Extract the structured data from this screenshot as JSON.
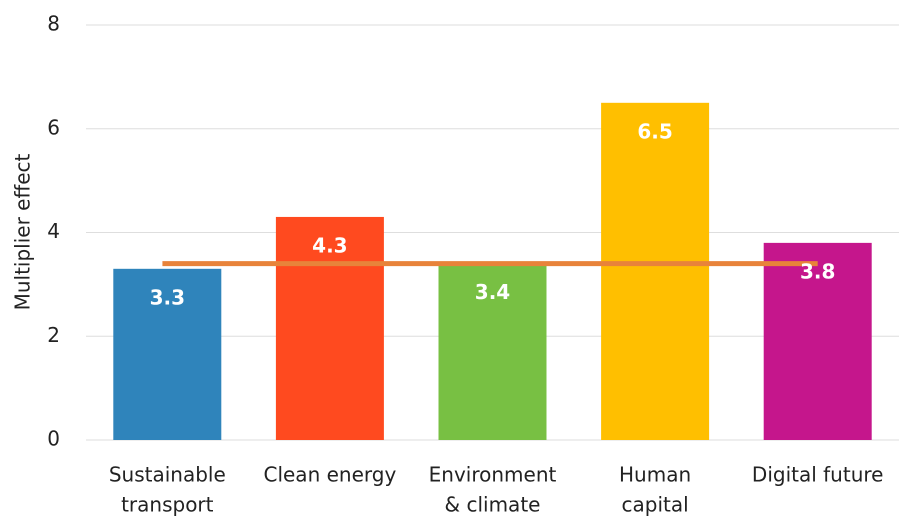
{
  "chart_data": {
    "type": "bar",
    "y_label": "Multiplier effect",
    "categories": [
      [
        "Sustainable",
        "transport"
      ],
      [
        "Clean energy"
      ],
      [
        "Environment",
        "& climate"
      ],
      [
        "Human",
        "capital"
      ],
      [
        "Digital future"
      ]
    ],
    "values": [
      3.3,
      4.3,
      3.4,
      6.5,
      3.8
    ],
    "colors": [
      "#2f84bb",
      "#ff4a1f",
      "#78c043",
      "#ffbf00",
      "#c5168c"
    ],
    "reference_line": {
      "value": 3.4,
      "color": "#e8833a"
    },
    "ylim": [
      0,
      8
    ],
    "yticks": [
      0,
      2,
      4,
      6,
      8
    ],
    "grid": true
  }
}
